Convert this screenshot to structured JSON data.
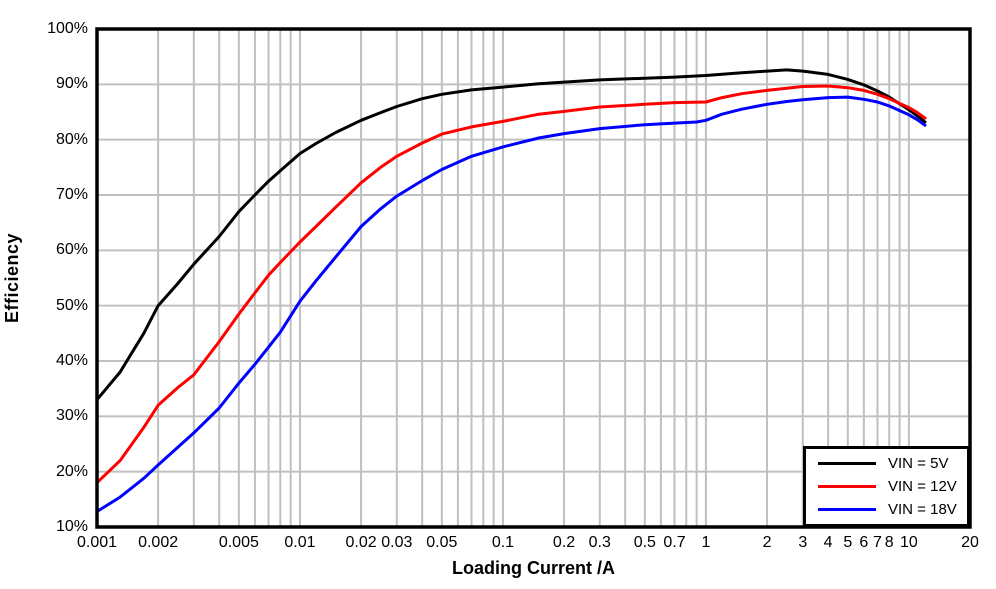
{
  "chart_data": {
    "type": "line",
    "title": "",
    "xlabel": "Loading Current /A",
    "ylabel": "Efficiency",
    "x_scale": "log",
    "xlim": [
      0.001,
      20
    ],
    "ylim": [
      10,
      100
    ],
    "y_unit": "%",
    "grid": true,
    "grid_color": "#c0c0c0",
    "frame_color": "#000000",
    "background": "#ffffff",
    "x_ticks": [
      {
        "value": 0.001,
        "label": "0.001"
      },
      {
        "value": 0.002,
        "label": "0.002"
      },
      {
        "value": 0.005,
        "label": "0.005"
      },
      {
        "value": 0.01,
        "label": "0.01"
      },
      {
        "value": 0.02,
        "label": "0.02"
      },
      {
        "value": 0.03,
        "label": "0.03"
      },
      {
        "value": 0.05,
        "label": "0.05"
      },
      {
        "value": 0.1,
        "label": "0.1"
      },
      {
        "value": 0.2,
        "label": "0.2"
      },
      {
        "value": 0.3,
        "label": "0.3"
      },
      {
        "value": 0.5,
        "label": "0.5"
      },
      {
        "value": 0.7,
        "label": "0.7"
      },
      {
        "value": 1,
        "label": "1"
      },
      {
        "value": 2,
        "label": "2"
      },
      {
        "value": 3,
        "label": "3"
      },
      {
        "value": 4,
        "label": "4"
      },
      {
        "value": 5,
        "label": "5"
      },
      {
        "value": 6,
        "label": "6"
      },
      {
        "value": 7,
        "label": "7"
      },
      {
        "value": 8,
        "label": "8"
      },
      {
        "value": 10,
        "label": "10"
      },
      {
        "value": 20,
        "label": "20"
      }
    ],
    "y_ticks": [
      {
        "value": 10,
        "label": "10%"
      },
      {
        "value": 20,
        "label": "20%"
      },
      {
        "value": 30,
        "label": "30%"
      },
      {
        "value": 40,
        "label": "40%"
      },
      {
        "value": 50,
        "label": "50%"
      },
      {
        "value": 60,
        "label": "60%"
      },
      {
        "value": 70,
        "label": "70%"
      },
      {
        "value": 80,
        "label": "80%"
      },
      {
        "value": 90,
        "label": "90%"
      },
      {
        "value": 100,
        "label": "100%"
      }
    ],
    "legend": {
      "position": "bottom-right",
      "items": [
        {
          "label": "VIN = 5V",
          "color": "#000000"
        },
        {
          "label": "VIN = 12V",
          "color": "#ff0000"
        },
        {
          "label": "VIN = 18V",
          "color": "#0000ff"
        }
      ]
    },
    "series": [
      {
        "name": "VIN = 5V",
        "color": "#000000",
        "points": [
          [
            0.001,
            33
          ],
          [
            0.0013,
            38
          ],
          [
            0.0017,
            45
          ],
          [
            0.002,
            50
          ],
          [
            0.0025,
            54
          ],
          [
            0.003,
            57.5
          ],
          [
            0.004,
            62.5
          ],
          [
            0.005,
            67
          ],
          [
            0.006,
            70
          ],
          [
            0.007,
            72.5
          ],
          [
            0.008,
            74.4
          ],
          [
            0.01,
            77.5
          ],
          [
            0.012,
            79.3
          ],
          [
            0.015,
            81.3
          ],
          [
            0.02,
            83.5
          ],
          [
            0.025,
            84.9
          ],
          [
            0.03,
            86
          ],
          [
            0.04,
            87.4
          ],
          [
            0.05,
            88.2
          ],
          [
            0.07,
            89
          ],
          [
            0.1,
            89.5
          ],
          [
            0.15,
            90.1
          ],
          [
            0.2,
            90.4
          ],
          [
            0.3,
            90.8
          ],
          [
            0.5,
            91.1
          ],
          [
            0.7,
            91.3
          ],
          [
            1,
            91.6
          ],
          [
            1.5,
            92.1
          ],
          [
            2,
            92.4
          ],
          [
            2.5,
            92.6
          ],
          [
            3,
            92.4
          ],
          [
            4,
            91.8
          ],
          [
            5,
            90.9
          ],
          [
            6,
            89.9
          ],
          [
            7,
            88.8
          ],
          [
            8,
            87.7
          ],
          [
            10,
            85.4
          ],
          [
            11,
            84.3
          ],
          [
            12,
            83.2
          ]
        ]
      },
      {
        "name": "VIN = 12V",
        "color": "#ff0000",
        "points": [
          [
            0.001,
            18
          ],
          [
            0.0013,
            22
          ],
          [
            0.0017,
            28
          ],
          [
            0.002,
            32
          ],
          [
            0.0025,
            35.2
          ],
          [
            0.003,
            37.5
          ],
          [
            0.004,
            43.5
          ],
          [
            0.005,
            48.5
          ],
          [
            0.006,
            52.3
          ],
          [
            0.007,
            55.5
          ],
          [
            0.008,
            57.8
          ],
          [
            0.01,
            61.5
          ],
          [
            0.012,
            64.3
          ],
          [
            0.015,
            67.8
          ],
          [
            0.02,
            72.2
          ],
          [
            0.025,
            75
          ],
          [
            0.03,
            77
          ],
          [
            0.04,
            79.4
          ],
          [
            0.05,
            81
          ],
          [
            0.07,
            82.3
          ],
          [
            0.1,
            83.3
          ],
          [
            0.15,
            84.6
          ],
          [
            0.2,
            85.1
          ],
          [
            0.3,
            85.9
          ],
          [
            0.5,
            86.4
          ],
          [
            0.7,
            86.7
          ],
          [
            1,
            86.8
          ],
          [
            1.2,
            87.6
          ],
          [
            1.5,
            88.3
          ],
          [
            2,
            88.9
          ],
          [
            3,
            89.6
          ],
          [
            4,
            89.7
          ],
          [
            5,
            89.4
          ],
          [
            6,
            88.9
          ],
          [
            7,
            88.2
          ],
          [
            8,
            87.4
          ],
          [
            10,
            85.8
          ],
          [
            11,
            84.9
          ],
          [
            12,
            83.9
          ]
        ]
      },
      {
        "name": "VIN = 18V",
        "color": "#0000ff",
        "points": [
          [
            0.001,
            12.8
          ],
          [
            0.0013,
            15.4
          ],
          [
            0.0017,
            18.8
          ],
          [
            0.002,
            21.2
          ],
          [
            0.003,
            27
          ],
          [
            0.004,
            31.5
          ],
          [
            0.005,
            36
          ],
          [
            0.006,
            39.4
          ],
          [
            0.007,
            42.5
          ],
          [
            0.008,
            45.2
          ],
          [
            0.01,
            50.8
          ],
          [
            0.012,
            54.5
          ],
          [
            0.015,
            58.8
          ],
          [
            0.02,
            64.3
          ],
          [
            0.025,
            67.5
          ],
          [
            0.03,
            69.8
          ],
          [
            0.04,
            72.6
          ],
          [
            0.05,
            74.6
          ],
          [
            0.07,
            77
          ],
          [
            0.1,
            78.7
          ],
          [
            0.15,
            80.3
          ],
          [
            0.2,
            81.1
          ],
          [
            0.3,
            82
          ],
          [
            0.5,
            82.7
          ],
          [
            0.7,
            83
          ],
          [
            0.9,
            83.2
          ],
          [
            1,
            83.5
          ],
          [
            1.2,
            84.6
          ],
          [
            1.5,
            85.5
          ],
          [
            2,
            86.4
          ],
          [
            2.5,
            86.9
          ],
          [
            3,
            87.2
          ],
          [
            4,
            87.6
          ],
          [
            5,
            87.7
          ],
          [
            6,
            87.3
          ],
          [
            7,
            86.8
          ],
          [
            8,
            86.1
          ],
          [
            10,
            84.5
          ],
          [
            11,
            83.6
          ],
          [
            12,
            82.6
          ]
        ]
      }
    ]
  }
}
